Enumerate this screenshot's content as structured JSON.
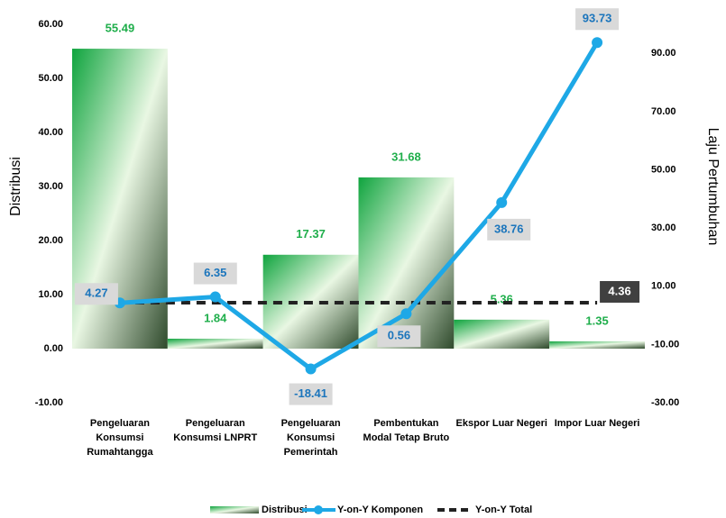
{
  "chart_data": {
    "type": "bar-line",
    "y_label": "Distribusi",
    "y2_label": "Laju Pertumbuhan",
    "categories": [
      "Pengeluaran Konsumsi Rumahtangga",
      "Pengeluaran Konsumsi LNPRT",
      "Pengeluaran Konsumsi Pemerintah",
      "Pembentukan Modal Tetap Bruto",
      "Ekspor Luar Negeri",
      "Impor Luar Negeri"
    ],
    "series": [
      {
        "name": "Distribusi",
        "type": "bar",
        "color": "#1fae4b",
        "values": [
          55.49,
          1.84,
          17.37,
          31.68,
          5.36,
          1.35
        ]
      },
      {
        "name": "Y-on-Y Komponen",
        "type": "line",
        "axis": "y2",
        "color": "#1ea8e6",
        "values": [
          4.27,
          6.35,
          -18.41,
          0.56,
          38.76,
          93.73
        ]
      },
      {
        "name": "Y-on-Y Total",
        "type": "dashed",
        "axis": "y2",
        "color": "#222222",
        "values": [
          4.36,
          4.36,
          4.36,
          4.36,
          4.36,
          4.36
        ]
      }
    ],
    "ylim": [
      -10,
      60
    ],
    "yticks": [
      {
        "value": -10,
        "label": "-10.00"
      },
      {
        "value": 0,
        "label": "0.00"
      },
      {
        "value": 10,
        "label": "10.00"
      },
      {
        "value": 20,
        "label": "20.00"
      },
      {
        "value": 30,
        "label": "30.00"
      },
      {
        "value": 40,
        "label": "40.00"
      },
      {
        "value": 50,
        "label": "50.00"
      },
      {
        "value": 60,
        "label": "60.00"
      }
    ],
    "y2lim": [
      -30,
      100
    ],
    "y2ticks": [
      {
        "value": -30,
        "label": "-30.00"
      },
      {
        "value": -10,
        "label": "-10.00"
      },
      {
        "value": 10,
        "label": "10.00"
      },
      {
        "value": 30,
        "label": "30.00"
      },
      {
        "value": 50,
        "label": "50.00"
      },
      {
        "value": 70,
        "label": "70.00"
      },
      {
        "value": 90,
        "label": "90.00"
      }
    ]
  }
}
